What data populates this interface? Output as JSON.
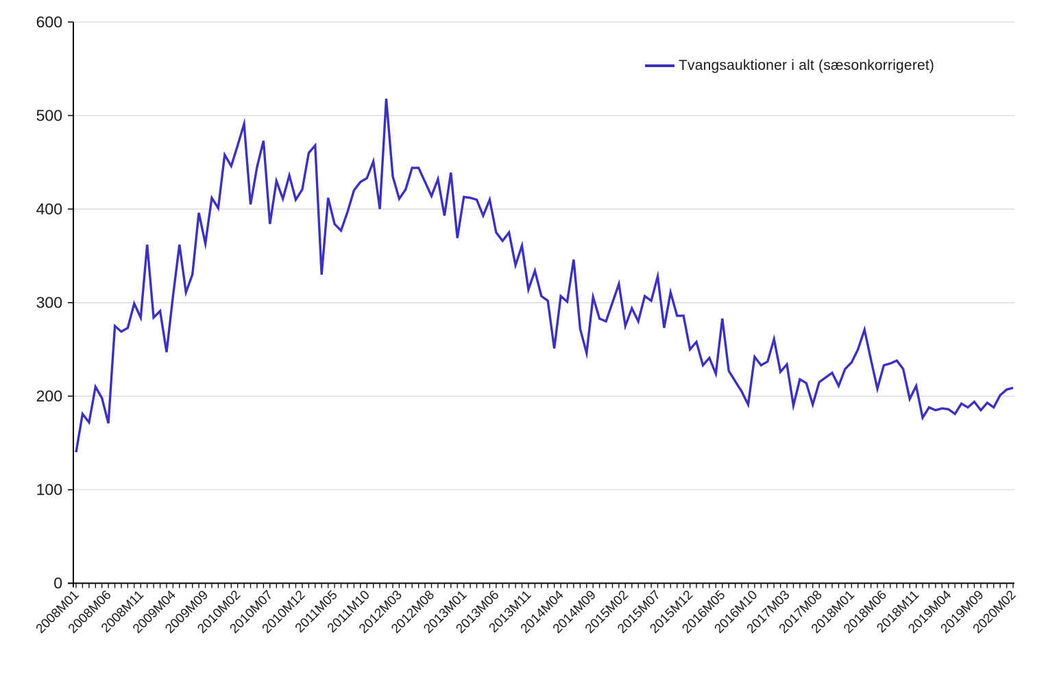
{
  "chart_data": {
    "type": "line",
    "title": "",
    "xlabel": "",
    "ylabel": "",
    "ylim": [
      0,
      600
    ],
    "ytick_step": 100,
    "xtick_label_every": 5,
    "grid": "horizontal",
    "legend_position": "top-right",
    "colors": {
      "line": "#3C30BE",
      "grid": "#d9d9d9",
      "axis": "#000000",
      "text": "#1a1a1a"
    },
    "x_tick_labels": [
      "2008M01",
      "2008M06",
      "2008M11",
      "2009M04",
      "2009M09",
      "2010M02",
      "2010M07",
      "2010M12",
      "2011M05",
      "2011M10",
      "2012M03",
      "2012M08",
      "2013M01",
      "2013M06",
      "2013M11",
      "2014M04",
      "2014M09",
      "2015M02",
      "2015M07",
      "2015M12",
      "2016M05",
      "2016M10",
      "2017M03",
      "2017M08",
      "2018M01",
      "2018M06",
      "2018M11",
      "2019M04",
      "2019M09",
      "2020M02"
    ],
    "series": [
      {
        "name": "Tvangsauktioner i alt (sæsonkorrigeret)",
        "color": "#3C30BE",
        "x": [
          "2008M01",
          "2008M02",
          "2008M03",
          "2008M04",
          "2008M05",
          "2008M06",
          "2008M07",
          "2008M08",
          "2008M09",
          "2008M10",
          "2008M11",
          "2008M12",
          "2009M01",
          "2009M02",
          "2009M03",
          "2009M04",
          "2009M05",
          "2009M06",
          "2009M07",
          "2009M08",
          "2009M09",
          "2009M10",
          "2009M11",
          "2009M12",
          "2010M01",
          "2010M02",
          "2010M03",
          "2010M04",
          "2010M05",
          "2010M06",
          "2010M07",
          "2010M08",
          "2010M09",
          "2010M10",
          "2010M11",
          "2010M12",
          "2011M01",
          "2011M02",
          "2011M03",
          "2011M04",
          "2011M05",
          "2011M06",
          "2011M07",
          "2011M08",
          "2011M09",
          "2011M10",
          "2011M11",
          "2011M12",
          "2012M01",
          "2012M02",
          "2012M03",
          "2012M04",
          "2012M05",
          "2012M06",
          "2012M07",
          "2012M08",
          "2012M09",
          "2012M10",
          "2012M11",
          "2012M12",
          "2013M01",
          "2013M02",
          "2013M03",
          "2013M04",
          "2013M05",
          "2013M06",
          "2013M07",
          "2013M08",
          "2013M09",
          "2013M10",
          "2013M11",
          "2013M12",
          "2014M01",
          "2014M02",
          "2014M03",
          "2014M04",
          "2014M05",
          "2014M06",
          "2014M07",
          "2014M08",
          "2014M09",
          "2014M10",
          "2014M11",
          "2014M12",
          "2015M01",
          "2015M02",
          "2015M03",
          "2015M04",
          "2015M05",
          "2015M06",
          "2015M07",
          "2015M08",
          "2015M09",
          "2015M10",
          "2015M11",
          "2015M12",
          "2016M01",
          "2016M02",
          "2016M03",
          "2016M04",
          "2016M05",
          "2016M06",
          "2016M07",
          "2016M08",
          "2016M09",
          "2016M10",
          "2016M11",
          "2016M12",
          "2017M01",
          "2017M02",
          "2017M03",
          "2017M04",
          "2017M05",
          "2017M06",
          "2017M07",
          "2017M08",
          "2017M09",
          "2017M10",
          "2017M11",
          "2017M12",
          "2018M01",
          "2018M02",
          "2018M03",
          "2018M04",
          "2018M05",
          "2018M06",
          "2018M07",
          "2018M08",
          "2018M09",
          "2018M10",
          "2018M11",
          "2018M12",
          "2019M01",
          "2019M02",
          "2019M03",
          "2019M04",
          "2019M05",
          "2019M06",
          "2019M07",
          "2019M08",
          "2019M09",
          "2019M10",
          "2019M11",
          "2019M12",
          "2020M01",
          "2020M02"
        ],
        "values": [
          140,
          181,
          172,
          210,
          198,
          171,
          275,
          269,
          273,
          299,
          284,
          362,
          284,
          291,
          247,
          307,
          362,
          311,
          330,
          396,
          363,
          412,
          401,
          458,
          446,
          468,
          491,
          405,
          445,
          473,
          384,
          430,
          411,
          436,
          410,
          421,
          460,
          468,
          330,
          412,
          384,
          377,
          397,
          420,
          429,
          433,
          451,
          400,
          518,
          435,
          411,
          421,
          444,
          444,
          429,
          414,
          432,
          393,
          439,
          369,
          413,
          412,
          410,
          393,
          410,
          375,
          366,
          375,
          340,
          361,
          314,
          334,
          307,
          302,
          251,
          307,
          301,
          346,
          272,
          246,
          306,
          283,
          280,
          300,
          320,
          275,
          294,
          280,
          307,
          302,
          328,
          273,
          311,
          286,
          286,
          250,
          258,
          233,
          241,
          224,
          283,
          227,
          216,
          205,
          191,
          242,
          233,
          237,
          261,
          226,
          234,
          190,
          218,
          214,
          191,
          215,
          220,
          225,
          211,
          229,
          236,
          250,
          271,
          239,
          208,
          233,
          235,
          238,
          229,
          197,
          211,
          177,
          188,
          185,
          187,
          186,
          181,
          192,
          188,
          194,
          185,
          193,
          188,
          201,
          207,
          209
        ]
      }
    ]
  }
}
